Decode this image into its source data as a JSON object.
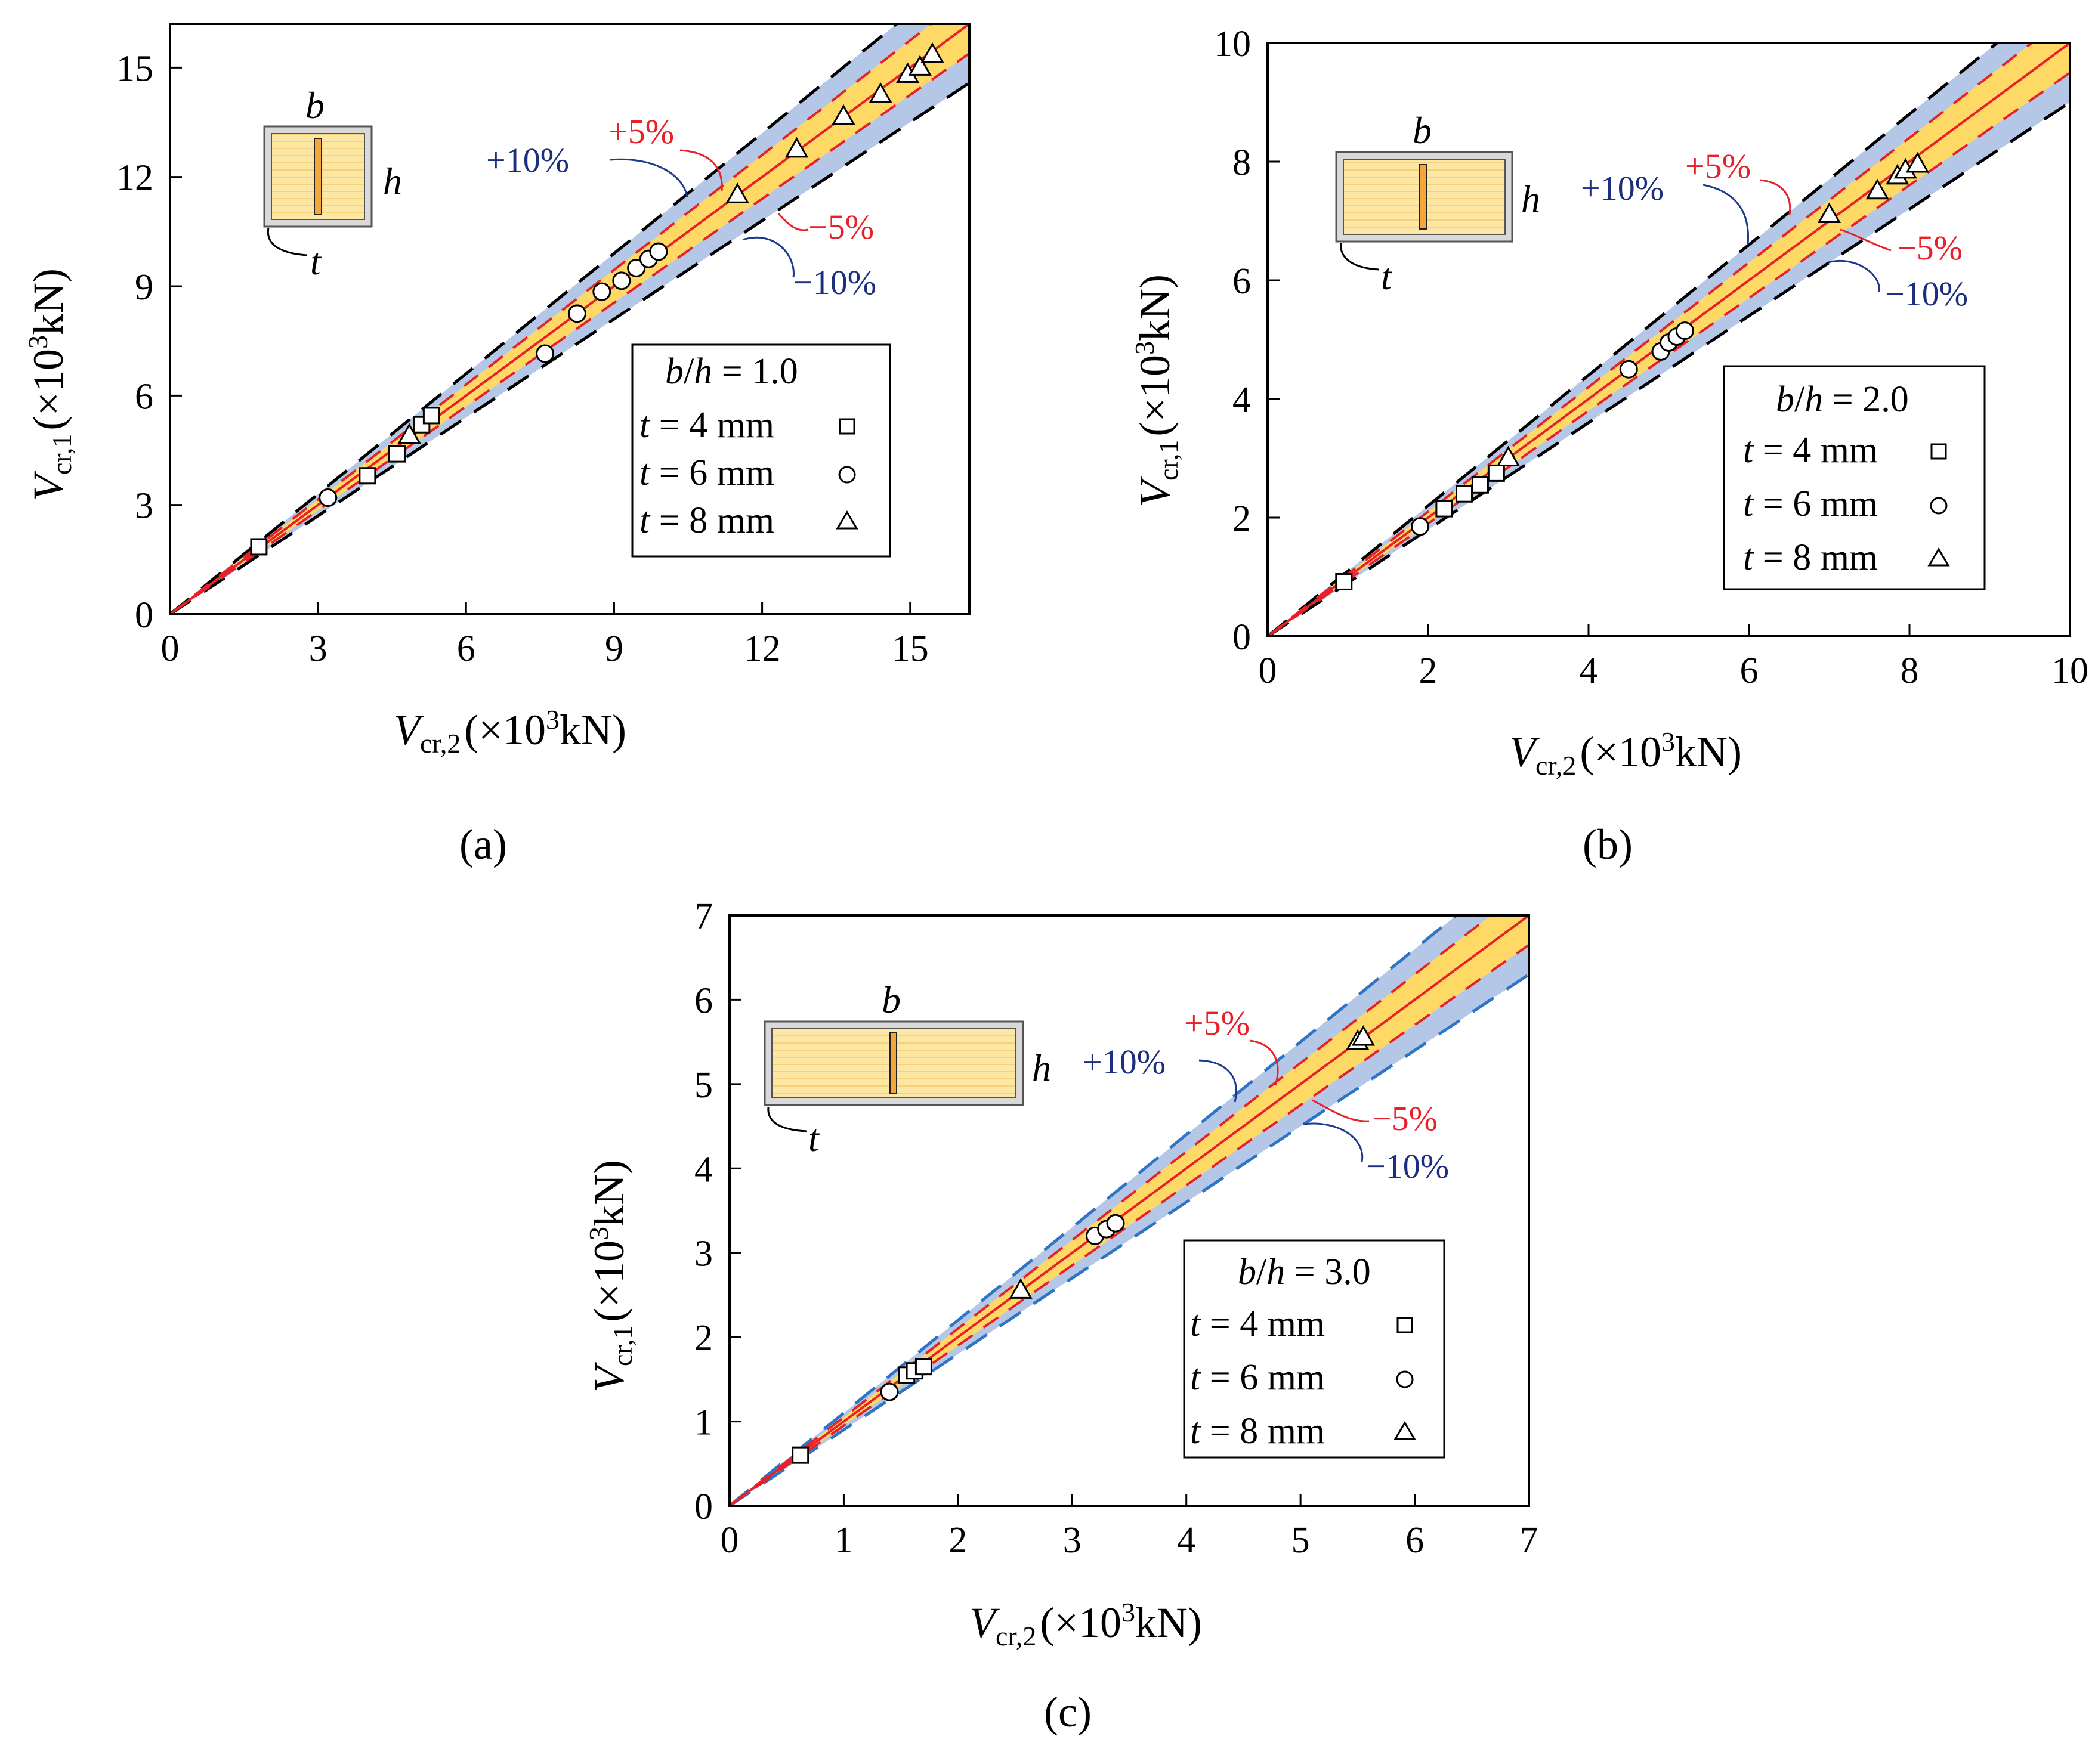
{
  "figure": {
    "band_labels": {
      "plus5": "+5%",
      "minus5": "−5%",
      "plus10": "+10%",
      "minus10": "−10%"
    },
    "section_labels": {
      "b": "b",
      "h": "h",
      "t": "t"
    },
    "y_label": {
      "main": "V",
      "sub": "cr,1",
      "unit": "(×10",
      "exp": "3",
      "unit_end": "kN)"
    },
    "x_label": {
      "main": "V",
      "sub": "cr,2",
      "unit": "(×10",
      "exp": "3",
      "unit_end": "kN)"
    },
    "legend_entries": [
      {
        "var": "t",
        "text": " = 4 mm",
        "marker": "square"
      },
      {
        "var": "t",
        "text": " = 6 mm",
        "marker": "circle"
      },
      {
        "var": "t",
        "text": " = 8 mm",
        "marker": "triangle"
      }
    ]
  },
  "colors": {
    "band10": "#b4c7e7",
    "band5": "#ffd966",
    "line_red": "#e8202a",
    "dash_black": "#000000",
    "dash_blue": "#2e75c6",
    "label_red": "#e8202a",
    "label_blue": "#1c2f7e",
    "section_fill": "#fde7a5",
    "section_web": "#f4a63a"
  },
  "chart_data": [
    {
      "type": "scatter",
      "panel_label": "(a)",
      "title": "",
      "legend_title": "b/h = 1.0",
      "legend_ratio": "1.0",
      "xlim": [
        0,
        16.2
      ],
      "ylim": [
        0,
        16.2
      ],
      "xticks": [
        0,
        3,
        6,
        9,
        12,
        15
      ],
      "yticks": [
        0,
        3,
        6,
        9,
        12,
        15
      ],
      "outer_band_style": "black",
      "reference_lines": [
        "y = x",
        "y = 1.05x",
        "y = 0.95x",
        "y = 1.10x",
        "y = 0.90x"
      ],
      "series": [
        {
          "name": "t = 4 mm",
          "marker": "square",
          "points": [
            [
              1.8,
              1.85
            ],
            [
              4.0,
              3.8
            ],
            [
              4.6,
              4.4
            ],
            [
              5.1,
              5.2
            ],
            [
              5.3,
              5.45
            ]
          ]
        },
        {
          "name": "t = 6 mm",
          "marker": "circle",
          "points": [
            [
              3.2,
              3.2
            ],
            [
              7.6,
              7.15
            ],
            [
              8.25,
              8.25
            ],
            [
              8.75,
              8.85
            ],
            [
              9.15,
              9.15
            ],
            [
              9.45,
              9.5
            ],
            [
              9.7,
              9.75
            ],
            [
              9.9,
              9.95
            ]
          ]
        },
        {
          "name": "t = 8 mm",
          "marker": "triangle",
          "points": [
            [
              4.85,
              4.9
            ],
            [
              11.5,
              11.5
            ],
            [
              12.7,
              12.75
            ],
            [
              13.65,
              13.65
            ],
            [
              14.4,
              14.25
            ],
            [
              14.95,
              14.8
            ],
            [
              15.2,
              15.0
            ],
            [
              15.45,
              15.35
            ]
          ]
        }
      ]
    },
    {
      "type": "scatter",
      "panel_label": "(b)",
      "title": "",
      "legend_title": "b/h = 2.0",
      "legend_ratio": "2.0",
      "xlim": [
        0,
        10
      ],
      "ylim": [
        0,
        10
      ],
      "xticks": [
        0,
        2,
        4,
        6,
        8,
        10
      ],
      "yticks": [
        0,
        2,
        4,
        6,
        8,
        10
      ],
      "outer_band_style": "black",
      "reference_lines": [
        "y = x",
        "y = 1.05x",
        "y = 0.95x",
        "y = 1.10x",
        "y = 0.90x"
      ],
      "series": [
        {
          "name": "t = 4 mm",
          "marker": "square",
          "points": [
            [
              0.95,
              0.92
            ],
            [
              2.2,
              2.15
            ],
            [
              2.45,
              2.4
            ],
            [
              2.65,
              2.55
            ],
            [
              2.85,
              2.75
            ]
          ]
        },
        {
          "name": "t = 6 mm",
          "marker": "circle",
          "points": [
            [
              1.9,
              1.85
            ],
            [
              4.5,
              4.5
            ],
            [
              4.9,
              4.8
            ],
            [
              5.0,
              4.95
            ],
            [
              5.1,
              5.05
            ],
            [
              5.2,
              5.15
            ]
          ]
        },
        {
          "name": "t = 8 mm",
          "marker": "triangle",
          "points": [
            [
              3.0,
              3.0
            ],
            [
              7.0,
              7.1
            ],
            [
              7.6,
              7.5
            ],
            [
              7.85,
              7.75
            ],
            [
              7.95,
              7.85
            ],
            [
              8.1,
              7.95
            ]
          ]
        }
      ]
    },
    {
      "type": "scatter",
      "panel_label": "(c)",
      "title": "",
      "legend_title": "b/h = 3.0",
      "legend_ratio": "3.0",
      "xlim": [
        0,
        7
      ],
      "ylim": [
        0,
        7
      ],
      "xticks": [
        0,
        1,
        2,
        3,
        4,
        5,
        6,
        7
      ],
      "yticks": [
        0,
        1,
        2,
        3,
        4,
        5,
        6,
        7
      ],
      "outer_band_style": "blue",
      "reference_lines": [
        "y = x",
        "y = 1.05x",
        "y = 0.95x",
        "y = 1.10x",
        "y = 0.90x"
      ],
      "series": [
        {
          "name": "t = 4 mm",
          "marker": "square",
          "points": [
            [
              0.62,
              0.6
            ],
            [
              1.55,
              1.55
            ],
            [
              1.62,
              1.6
            ],
            [
              1.7,
              1.65
            ]
          ]
        },
        {
          "name": "t = 6 mm",
          "marker": "circle",
          "points": [
            [
              1.4,
              1.35
            ],
            [
              3.2,
              3.2
            ],
            [
              3.3,
              3.28
            ],
            [
              3.38,
              3.35
            ]
          ]
        },
        {
          "name": "t = 8 mm",
          "marker": "triangle",
          "points": [
            [
              2.55,
              2.55
            ],
            [
              5.5,
              5.5
            ],
            [
              5.55,
              5.55
            ]
          ]
        }
      ]
    }
  ]
}
